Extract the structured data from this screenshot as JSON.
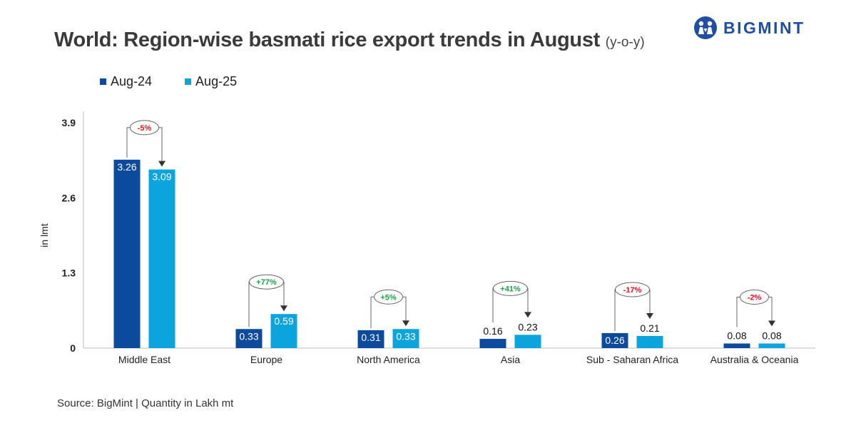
{
  "header": {
    "title": "World: Region-wise basmati rice export trends in August",
    "title_suffix": "(y-o-y)"
  },
  "logo": {
    "text": "BIGMINT",
    "icon": "bigmint-people-icon",
    "color": "#1f4fa3"
  },
  "legend": [
    {
      "label": "Aug-24",
      "color": "#0b4a9c"
    },
    {
      "label": "Aug-25",
      "color": "#0ba4dd"
    }
  ],
  "source": "Source: BigMint | Quantity in Lakh mt",
  "chart_data": {
    "type": "bar",
    "title": "World: Region-wise basmati rice export trends in August (y-o-y)",
    "ylabel": "in lmt",
    "xlabel": "",
    "ylim": [
      0,
      3.9
    ],
    "yticks": [
      "0",
      "1.3",
      "2.6",
      "3.9"
    ],
    "ytick_values": [
      0,
      1.3,
      2.6,
      3.9
    ],
    "grid": false,
    "legend_position": "top-left",
    "categories": [
      "Middle East",
      "Europe",
      "North America",
      "Asia",
      "Sub - Saharan Africa",
      "Australia & Oceania"
    ],
    "series": [
      {
        "name": "Aug-24",
        "color": "#0b4a9c",
        "values": [
          3.26,
          0.33,
          0.31,
          0.16,
          0.26,
          0.08
        ],
        "labels": [
          "3.26",
          "0.33",
          "0.31",
          "0.16",
          "0.26",
          "0.08"
        ]
      },
      {
        "name": "Aug-25",
        "color": "#0ba4dd",
        "values": [
          3.09,
          0.59,
          0.33,
          0.23,
          0.21,
          0.08
        ],
        "labels": [
          "3.09",
          "0.59",
          "0.33",
          "0.23",
          "0.21",
          "0.08"
        ]
      }
    ],
    "changes": [
      "-5%",
      "+77%",
      "+5%",
      "+41%",
      "-17%",
      "-2%"
    ],
    "positive_color": "#1e9e4a",
    "negative_color": "#e0141e"
  }
}
